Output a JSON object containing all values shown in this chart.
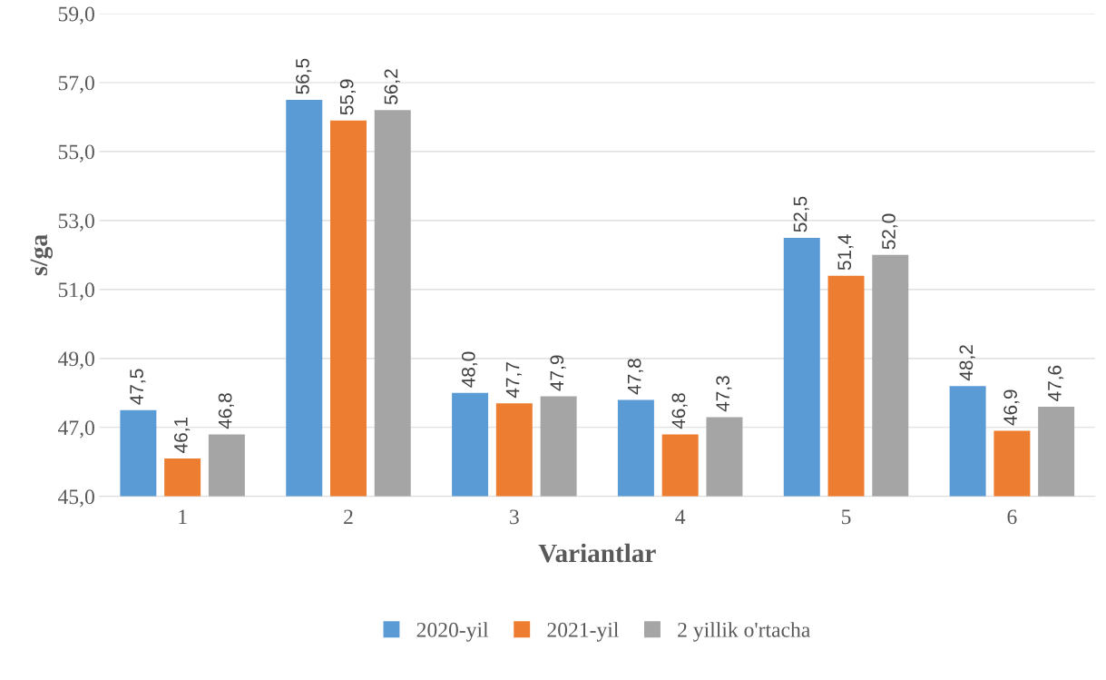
{
  "chart_data": {
    "type": "bar",
    "xlabel": "Variantlar",
    "ylabel": "s/ga",
    "categories": [
      "1",
      "2",
      "3",
      "4",
      "5",
      "6"
    ],
    "series": [
      {
        "name": "2020-yil",
        "color": "#5b9bd5",
        "values": [
          47.5,
          56.5,
          48.0,
          47.8,
          52.5,
          48.2
        ],
        "value_labels": [
          "47,5",
          "56,5",
          "48,0",
          "47,8",
          "52,5",
          "48,2"
        ]
      },
      {
        "name": "2021-yil",
        "color": "#ed7d31",
        "values": [
          46.1,
          55.9,
          47.7,
          46.8,
          51.4,
          46.9
        ],
        "value_labels": [
          "46,1",
          "55,9",
          "47,7",
          "46,8",
          "51,4",
          "46,9"
        ]
      },
      {
        "name": "2 yillik o'rtacha",
        "color": "#a5a5a5",
        "values": [
          46.8,
          56.2,
          47.9,
          47.3,
          52.0,
          47.6
        ],
        "value_labels": [
          "46,8",
          "56,2",
          "47,9",
          "47,3",
          "52,0",
          "47,6"
        ]
      }
    ],
    "ylim": [
      45,
      59
    ],
    "yticks": [
      {
        "value": 45,
        "label": "45,0"
      },
      {
        "value": 47,
        "label": "47,0"
      },
      {
        "value": 49,
        "label": "49,0"
      },
      {
        "value": 51,
        "label": "51,0"
      },
      {
        "value": 53,
        "label": "53,0"
      },
      {
        "value": 55,
        "label": "55,0"
      },
      {
        "value": 57,
        "label": "57,0"
      },
      {
        "value": 59,
        "label": "59,0"
      }
    ],
    "grid": "y",
    "legend": "bottom"
  }
}
